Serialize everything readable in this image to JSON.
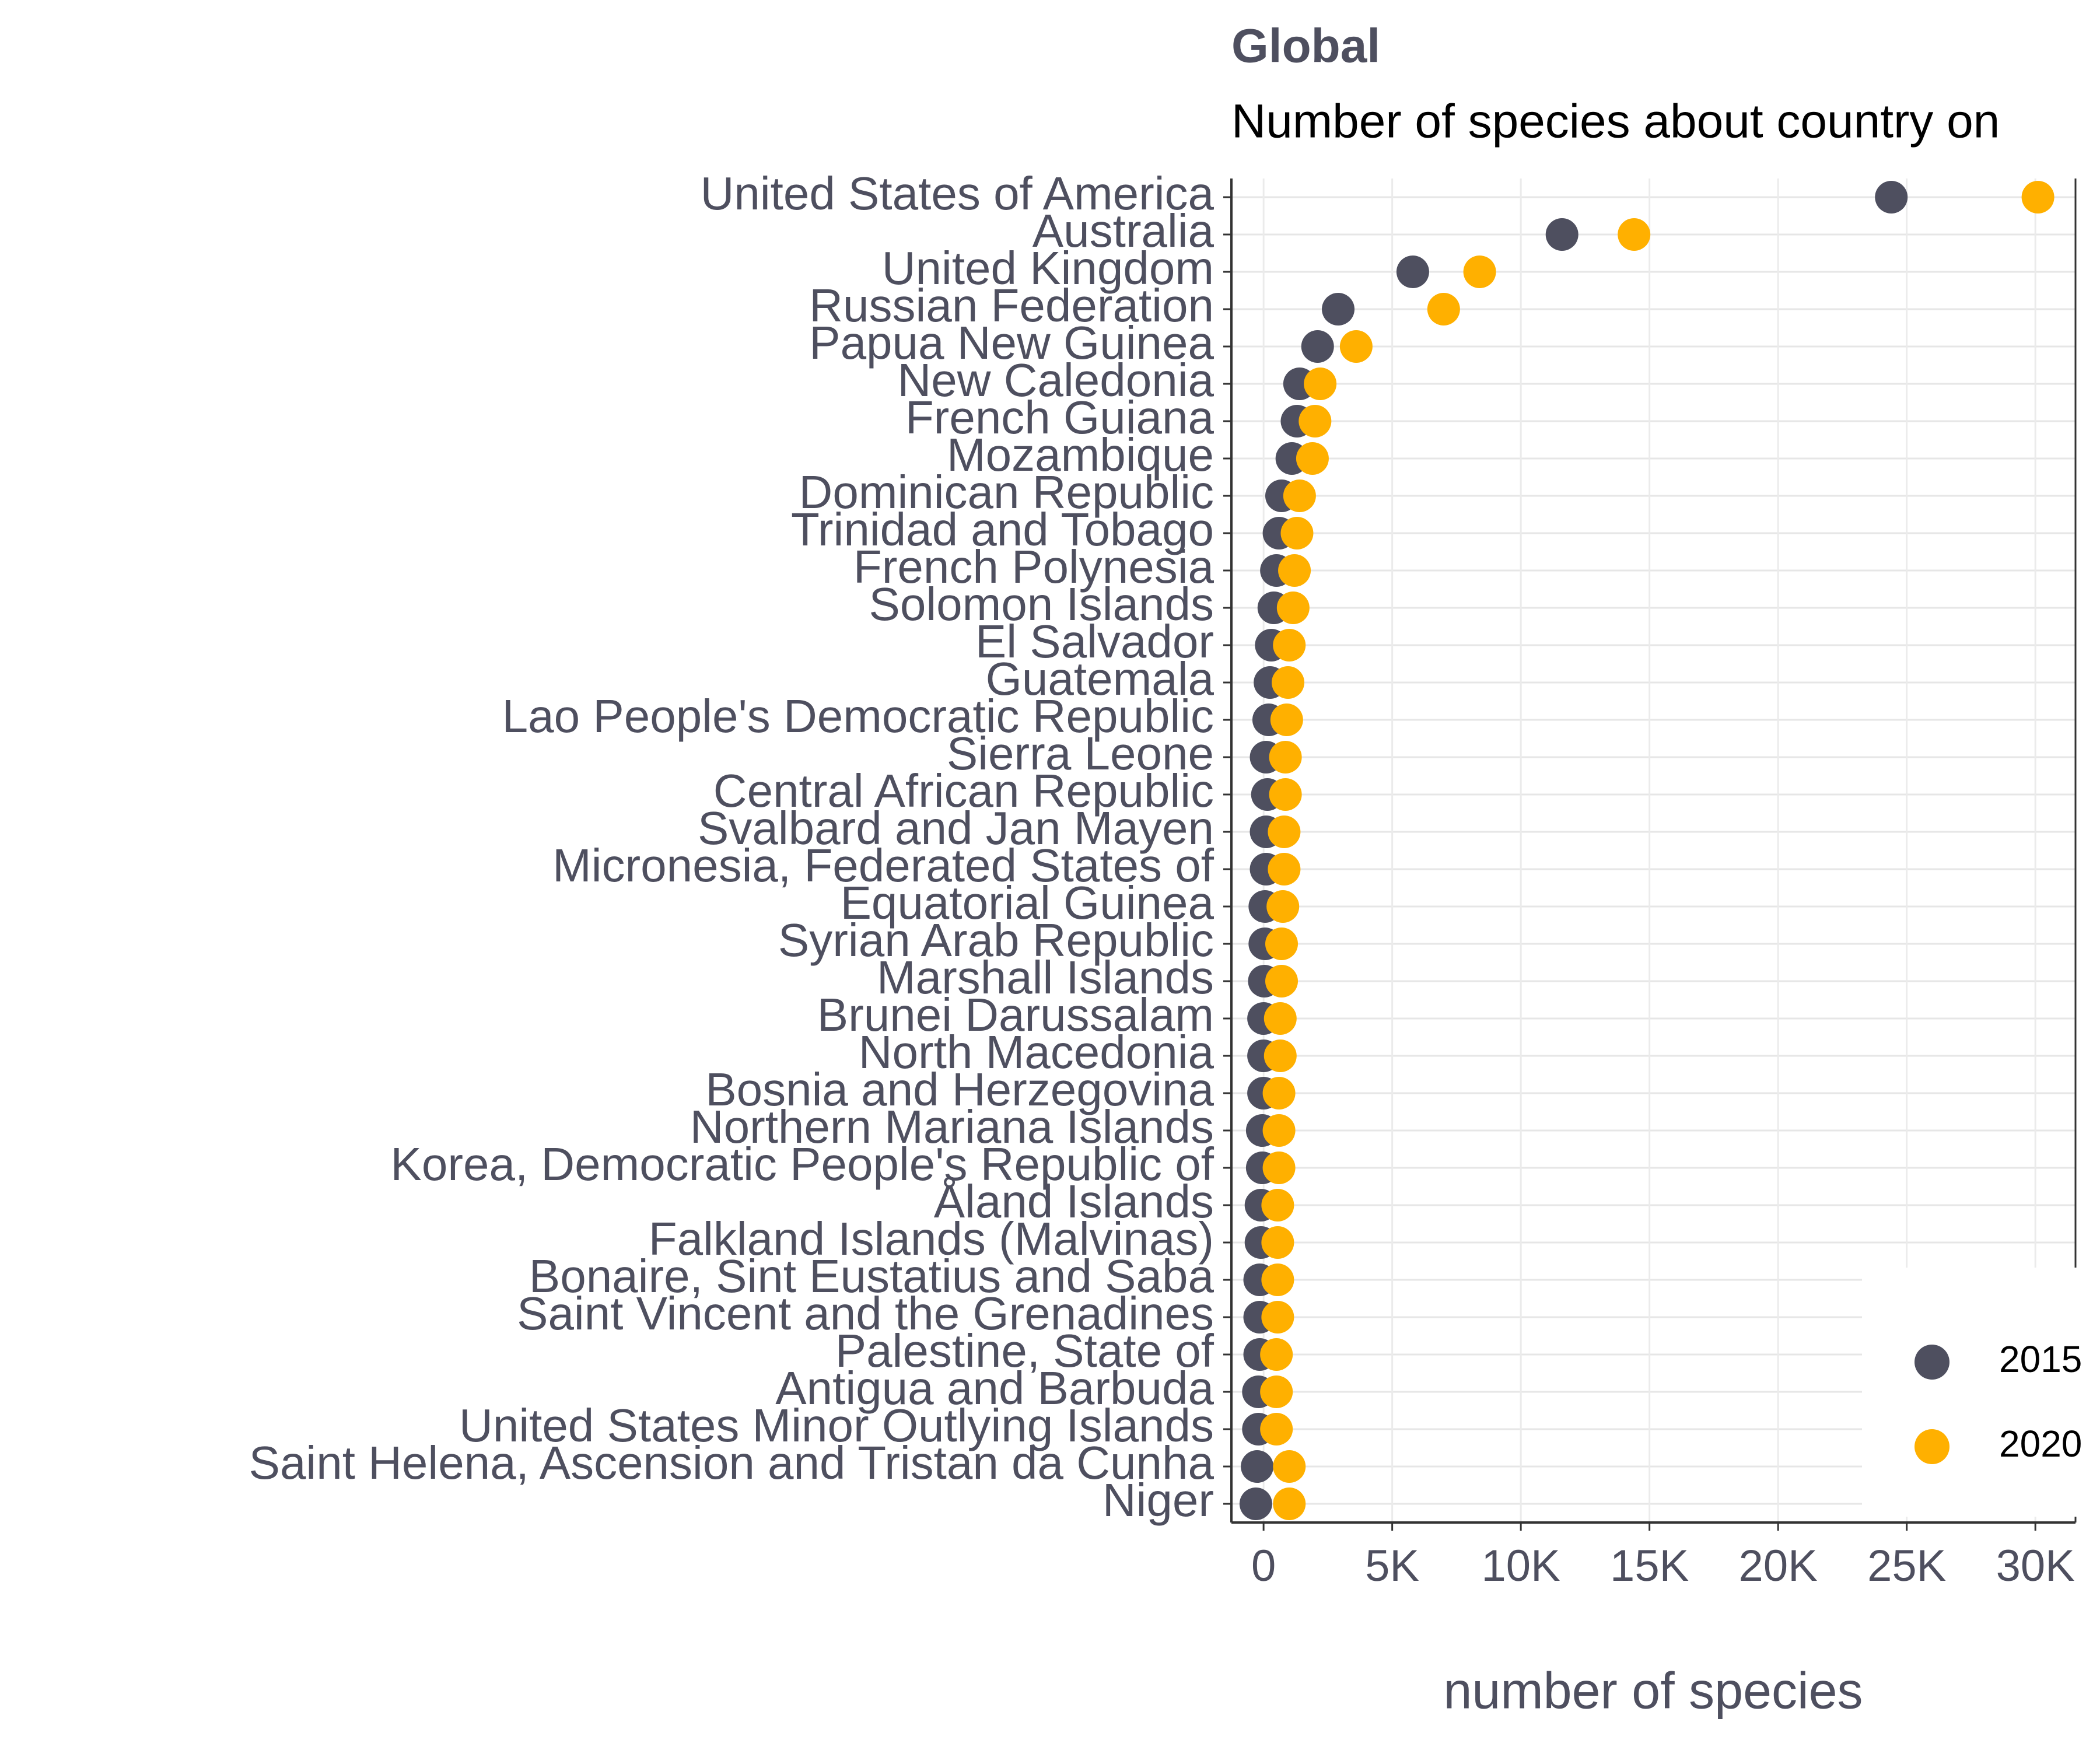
{
  "chart_data": {
    "type": "dot",
    "title": "Global",
    "subtitle": "Number of species about country on",
    "x_label": "number of species",
    "categories": [
      "United States of America",
      "Australia",
      "United Kingdom",
      "Russian Federation",
      "Papua New Guinea",
      "New Caledonia",
      "French Guiana",
      "Mozambique",
      "Dominican Republic",
      "Trinidad and Tobago",
      "French Polynesia",
      "Solomon Islands",
      "El Salvador",
      "Guatemala",
      "Lao People's Democratic Republic",
      "Sierra Leone",
      "Central African Republic",
      "Svalbard and Jan Mayen",
      "Micronesia, Federated States of",
      "Equatorial Guinea",
      "Syrian Arab Republic",
      "Marshall Islands",
      "Brunei Darussalam",
      "North Macedonia",
      "Bosnia and Herzegovina",
      "Northern Mariana Islands",
      "Korea, Democratic People's Republic of",
      "Åland Islands",
      "Falkland Islands (Malvinas)",
      "Bonaire, Sint Eustatius and Saba",
      "Saint Vincent and the Grenadines",
      "Palestine, State of",
      "Antigua and Barbuda",
      "United States Minor Outlying Islands",
      "Saint Helena, Ascension and Tristan da Cunha",
      "Niger"
    ],
    "series": [
      {
        "name": "2015",
        "color": "#4E4F5F",
        "values": [
          24400,
          11600,
          5800,
          2900,
          2100,
          1400,
          1300,
          1100,
          700,
          600,
          500,
          400,
          300,
          250,
          200,
          100,
          150,
          100,
          100,
          50,
          50,
          30,
          0,
          0,
          0,
          -50,
          -50,
          -100,
          -100,
          -150,
          -150,
          -150,
          -200,
          -200,
          -250,
          -300
        ]
      },
      {
        "name": "2020",
        "color": "#FFB000",
        "values": [
          30100,
          14400,
          8400,
          7000,
          3600,
          2200,
          2000,
          1900,
          1400,
          1300,
          1200,
          1150,
          1000,
          950,
          900,
          850,
          850,
          800,
          800,
          750,
          700,
          700,
          650,
          650,
          600,
          600,
          600,
          550,
          550,
          550,
          550,
          500,
          500,
          500,
          1000,
          1000
        ]
      }
    ],
    "xlim": [
      -1250,
      31560
    ],
    "xticks": [
      0,
      {
        "value": 5000,
        "label": "5K"
      },
      {
        "value": 10000,
        "label": "10K"
      },
      {
        "value": 15000,
        "label": "15K"
      },
      {
        "value": 20000,
        "label": "20K"
      },
      {
        "value": 25000,
        "label": "25K"
      },
      {
        "value": 30000,
        "label": "30K"
      }
    ],
    "grid": true,
    "legend": "bottom-right"
  }
}
